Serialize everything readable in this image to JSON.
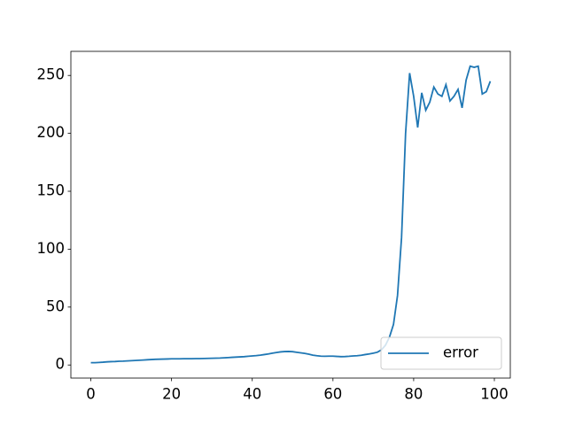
{
  "chart_data": {
    "type": "line",
    "x": [
      0,
      1,
      2,
      3,
      4,
      5,
      6,
      7,
      8,
      9,
      10,
      11,
      12,
      13,
      14,
      15,
      16,
      17,
      18,
      19,
      20,
      21,
      22,
      23,
      24,
      25,
      26,
      27,
      28,
      29,
      30,
      31,
      32,
      33,
      34,
      35,
      36,
      37,
      38,
      39,
      40,
      41,
      42,
      43,
      44,
      45,
      46,
      47,
      48,
      49,
      50,
      51,
      52,
      53,
      54,
      55,
      56,
      57,
      58,
      59,
      60,
      61,
      62,
      63,
      64,
      65,
      66,
      67,
      68,
      69,
      70,
      71,
      72,
      73,
      74,
      75,
      76,
      77,
      78,
      79,
      80,
      81,
      82,
      83,
      84,
      85,
      86,
      87,
      88,
      89,
      90,
      91,
      92,
      93,
      94,
      95,
      96,
      97,
      98,
      99
    ],
    "series": [
      {
        "name": "error",
        "color": "#1f77b4",
        "values": [
          2,
          2,
          2.2,
          2.4,
          2.7,
          2.9,
          3,
          3.2,
          3.3,
          3.5,
          3.7,
          3.9,
          4.1,
          4.3,
          4.5,
          4.7,
          4.9,
          5,
          5.1,
          5.2,
          5.3,
          5.3,
          5.3,
          5.4,
          5.4,
          5.4,
          5.5,
          5.5,
          5.6,
          5.7,
          5.8,
          5.9,
          6,
          6.2,
          6.4,
          6.6,
          6.8,
          7,
          7.2,
          7.5,
          7.8,
          8.1,
          8.5,
          9,
          9.5,
          10.2,
          10.8,
          11.3,
          11.6,
          11.7,
          11.5,
          11,
          10.5,
          10,
          9.3,
          8.5,
          8,
          7.6,
          7.5,
          7.6,
          7.6,
          7.4,
          7.2,
          7.3,
          7.5,
          7.8,
          8,
          8.4,
          9,
          9.5,
          10.2,
          11,
          13,
          17,
          24,
          35,
          60,
          110,
          200,
          252,
          232,
          205,
          235,
          220,
          227,
          240,
          234,
          232,
          242,
          228,
          232,
          238,
          222,
          246,
          258,
          257,
          258,
          234,
          236,
          245
        ]
      }
    ],
    "xlim": [
      -4.95,
      103.95
    ],
    "xticks": [
      0,
      20,
      40,
      60,
      80,
      100
    ],
    "ylim": [
      -11.3,
      270.8
    ],
    "yticks": [
      0,
      50,
      100,
      150,
      200,
      250
    ],
    "legend": "lower right"
  }
}
